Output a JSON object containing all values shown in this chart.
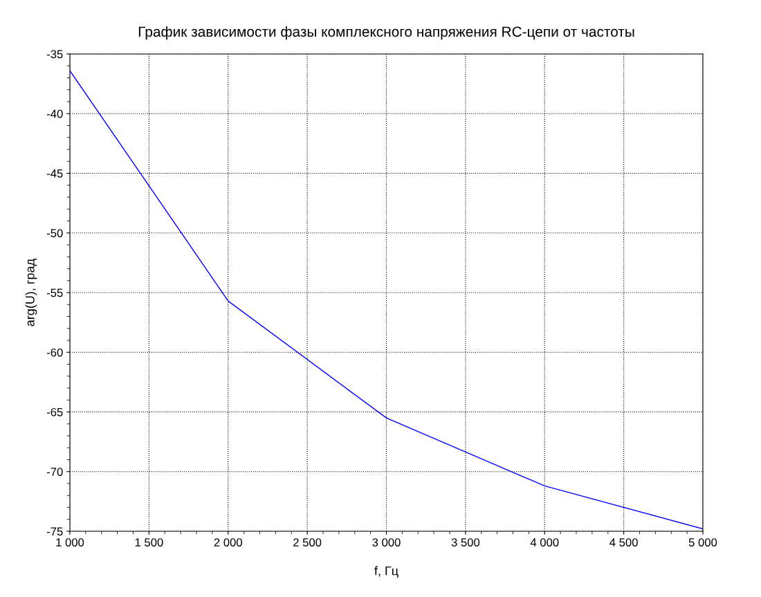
{
  "chart_data": {
    "type": "line",
    "title": "График зависимости фазы комплексного напряжения RC-цепи от частоты",
    "xlabel": "f, Гц",
    "ylabel": "arg(U), град",
    "x": [
      1000,
      2000,
      3000,
      4000,
      5000
    ],
    "series": [
      {
        "color": "#0000ff",
        "values": [
          -36.4,
          -55.7,
          -65.5,
          -71.2,
          -74.8
        ]
      }
    ],
    "xlim": [
      1000,
      5000
    ],
    "xticks": [
      {
        "value": 1000,
        "label": "1 000"
      },
      {
        "value": 1500,
        "label": "1 500"
      },
      {
        "value": 2000,
        "label": "2 000"
      },
      {
        "value": 2500,
        "label": "2 500"
      },
      {
        "value": 3000,
        "label": "3 000"
      },
      {
        "value": 3500,
        "label": "3 500"
      },
      {
        "value": 4000,
        "label": "4 000"
      },
      {
        "value": 4500,
        "label": "4 500"
      },
      {
        "value": 5000,
        "label": "5 000"
      }
    ],
    "ylim": [
      -75,
      -35
    ],
    "yticks": [
      -75,
      -70,
      -65,
      -60,
      -55,
      -50,
      -45,
      -40,
      -35
    ],
    "grid": true,
    "marker": "none",
    "line_style": "solid"
  }
}
